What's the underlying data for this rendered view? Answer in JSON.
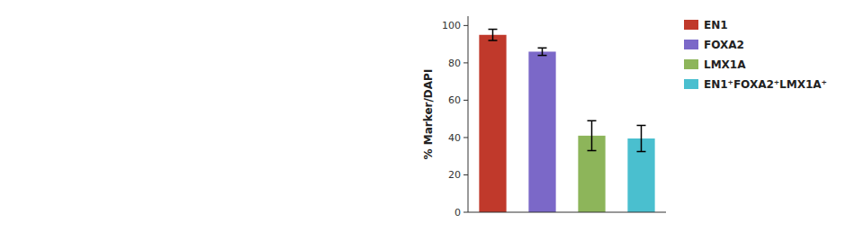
{
  "chart_data": {
    "type": "bar",
    "ylabel": "% Marker/DAPI",
    "categories": [
      "EN1",
      "FOXA2",
      "LMX1A",
      "EN1⁺FOXA2⁺LMX1A⁺"
    ],
    "values": [
      95,
      86,
      41,
      39.5
    ],
    "errors": [
      3,
      2,
      8,
      7
    ],
    "colors": [
      "#c0392b",
      "#7b68c8",
      "#8db55a",
      "#4abfcf"
    ],
    "ylim": [
      0,
      105
    ],
    "yticks": [
      0,
      20,
      40,
      60,
      80,
      100
    ],
    "grid": false,
    "legend": "right",
    "tick_labels": "y"
  }
}
